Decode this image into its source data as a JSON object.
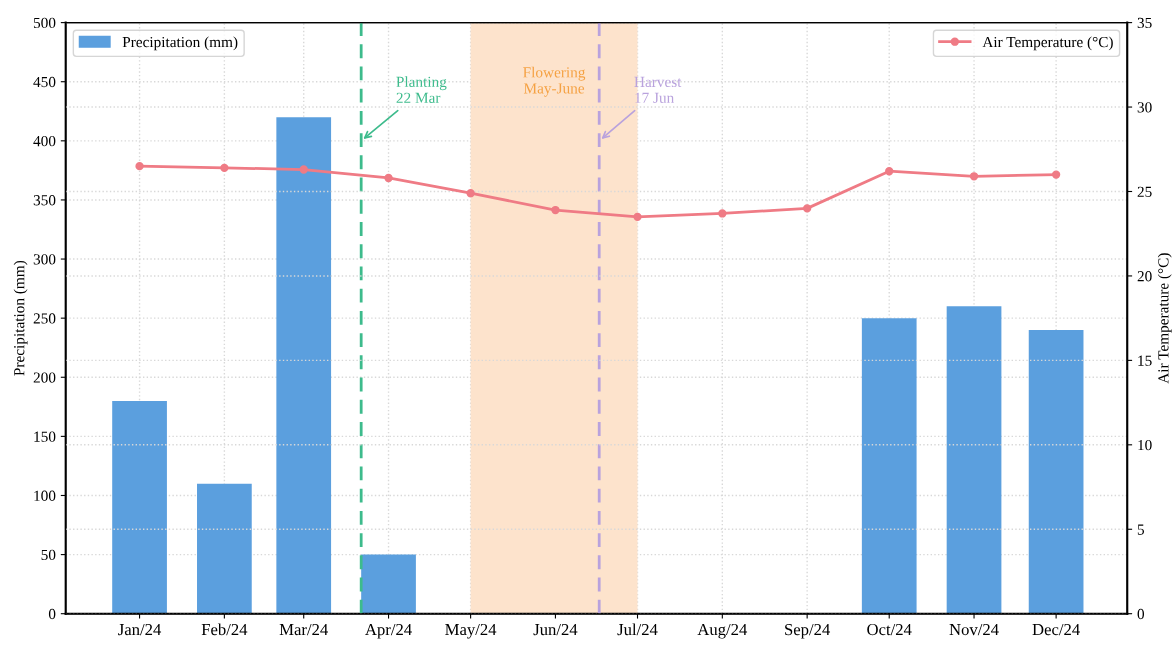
{
  "chart_data": {
    "type": "bar",
    "x": [
      "2024-01-01",
      "2024-02-01",
      "2024-03-01",
      "2024-04-01",
      "2024-05-01",
      "2024-06-01",
      "2024-07-01",
      "2024-08-01",
      "2024-09-01",
      "2024-10-01",
      "2024-11-01",
      "2024-12-01"
    ],
    "series": [
      {
        "name": "Precipitation (mm)",
        "color": "#5b9fde",
        "values": [
          180,
          110,
          420,
          50,
          0,
          0,
          0,
          0,
          0,
          250,
          260,
          240
        ]
      },
      {
        "name": "Air Temperature (°C)",
        "type": "line",
        "axis": "y2",
        "color": "#ef7b85",
        "marker": "circle",
        "values": [
          26.5,
          26.4,
          26.3,
          25.8,
          24.9,
          23.9,
          23.5,
          23.7,
          24.0,
          26.2,
          25.9,
          26.0
        ]
      }
    ],
    "ylabel": "Precipitation (mm)",
    "y2label": "Air Temperature (°C)",
    "xlim": [
      "2023-12-05",
      "2024-12-27"
    ],
    "xticks": [
      {
        "value": "2024-01-01",
        "label": "Jan/24"
      },
      {
        "value": "2024-02-01",
        "label": "Feb/24"
      },
      {
        "value": "2024-03-01",
        "label": "Mar/24"
      },
      {
        "value": "2024-04-01",
        "label": "Apr/24"
      },
      {
        "value": "2024-05-01",
        "label": "May/24"
      },
      {
        "value": "2024-06-01",
        "label": "Jun/24"
      },
      {
        "value": "2024-07-01",
        "label": "Jul/24"
      },
      {
        "value": "2024-08-01",
        "label": "Aug/24"
      },
      {
        "value": "2024-09-01",
        "label": "Sep/24"
      },
      {
        "value": "2024-10-01",
        "label": "Oct/24"
      },
      {
        "value": "2024-11-01",
        "label": "Nov/24"
      },
      {
        "value": "2024-12-01",
        "label": "Dec/24"
      }
    ],
    "ylim": [
      0,
      500
    ],
    "yticks": [
      0,
      50,
      100,
      150,
      200,
      250,
      300,
      350,
      400,
      450,
      500
    ],
    "y2lim": [
      0,
      35
    ],
    "y2ticks": [
      0,
      5,
      10,
      15,
      20,
      25,
      30,
      35
    ],
    "ref_lines": [
      {
        "axis": "x",
        "value": "2024-03-22",
        "label": "Planting\n22 Mar",
        "color": "#3dbb8c",
        "line_style": "dashed"
      },
      {
        "axis": "x",
        "value": "2024-06-17",
        "label": "Harvest\n17 Jun",
        "color": "#b9a2dd",
        "line_style": "dashed"
      }
    ],
    "bands": [
      {
        "axis": "x",
        "from": "2024-05-01",
        "to": "2024-07-01",
        "label": "Flowering\nMay-June",
        "color": "#fde3cc"
      }
    ],
    "grid": true,
    "legend": "top"
  }
}
